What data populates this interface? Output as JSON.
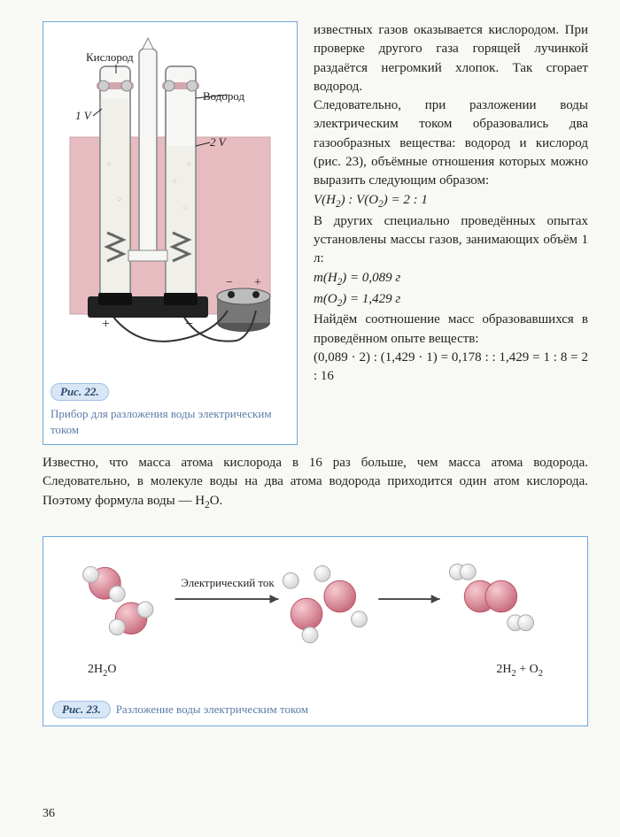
{
  "page_number": "36",
  "figure22": {
    "badge": "Рис. 22.",
    "caption": "Прибор для разложения воды электрическим током",
    "labels": {
      "oxygen": "Кислород",
      "hydrogen": "Водород",
      "v1": "1 V",
      "v2": "2 V",
      "plus": "+",
      "minus": "−"
    },
    "colors": {
      "frame": "#6fa8dc",
      "bath": "#e6bcc0",
      "tube_outline": "#888",
      "tube_fill": "#f6f6f4",
      "water_fill": "#f0efe9",
      "metal": "#cecece",
      "dark_metal": "#222",
      "wire": "#333",
      "pink_cap": "#d4a7af"
    }
  },
  "right_text": {
    "p1": "известных газов оказывается кислородом. При проверке другого газа горящей лучинкой раздаётся негромкий хлопок. Так сгорает водород.",
    "p2": "Следовательно, при разложении воды электрическим током образовались два газообразных вещества: водород и кислород (рис. 23), объёмные отношения которых можно выразить следующим образом:",
    "eq1_html": "V(H<sub>2</sub>) : V(O<sub>2</sub>) = 2 : 1",
    "p3": "В других специально проведённых опытах установлены массы газов, занимающих объём 1 л:",
    "eq2_html": "m(H<sub>2</sub>) = 0,089 г",
    "eq3_html": "m(O<sub>2</sub>) = 1,429 г",
    "p4": "Найдём соотношение масс образовавшихся в проведённом опыте веществ:",
    "eq4": "(0,089 · 2) : (1,429 · 1) = 0,178 : : 1,429 = 1 : 8 = 2 : 16"
  },
  "below_text_html": "Известно, что масса атома кислорода в 16 раз больше, чем масса атома водорода. Следовательно, в молекуле воды на два атома водорода приходится один атом кислорода. Поэтому формула воды — H<sub>2</sub>O.",
  "figure23": {
    "badge": "Рис. 23.",
    "caption": "Разложение воды электрическим током",
    "arrow_label": "Электрический ток",
    "left_formula_html": "2H<sub>2</sub>O",
    "right_formula_html": "2H<sub>2</sub> + O<sub>2</sub>",
    "colors": {
      "oxygen": "#d88594",
      "oxygen_hl": "#f7cad2",
      "hydrogen": "#f2f2f2",
      "hydrogen_hl": "#ffffff",
      "arrow": "#444"
    }
  }
}
